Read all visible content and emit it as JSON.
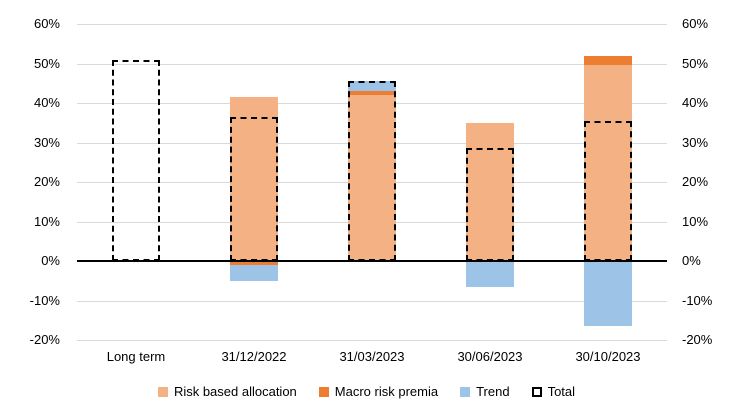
{
  "chart_data": {
    "type": "bar",
    "subtype": "stacked-with-total-outline",
    "title": "",
    "categories": [
      "Long term",
      "31/12/2022",
      "31/03/2023",
      "30/06/2023",
      "30/10/2023"
    ],
    "series": [
      {
        "name": "Risk based allocation",
        "color": "#F4B183",
        "values": [
          0,
          41.5,
          42,
          35,
          49.5
        ]
      },
      {
        "name": "Macro risk premia",
        "color": "#ED7D31",
        "values": [
          0,
          -1,
          1,
          0,
          2.5
        ]
      },
      {
        "name": "Trend",
        "color": "#9DC3E6",
        "values": [
          0,
          -4,
          2.5,
          -6.5,
          -16.5
        ]
      }
    ],
    "total_series": {
      "name": "Total",
      "style": "dashed-outline",
      "color": "#000000",
      "values": [
        51,
        36.5,
        45.5,
        28.5,
        35.5
      ]
    },
    "ylim": [
      -20,
      60
    ],
    "ytick_step": 10,
    "ytick_labels_desc": [
      "60%",
      "50%",
      "40%",
      "30%",
      "20%",
      "10%",
      "0%",
      "-10%",
      "-20%"
    ],
    "dual_value_axis": true,
    "grid": true,
    "gridline_color": "#D9D9D9",
    "zero_line_color": "#000000",
    "legend_position": "bottom",
    "legend_labels": [
      "Risk based allocation",
      "Macro risk premia",
      "Trend",
      "Total"
    ]
  }
}
